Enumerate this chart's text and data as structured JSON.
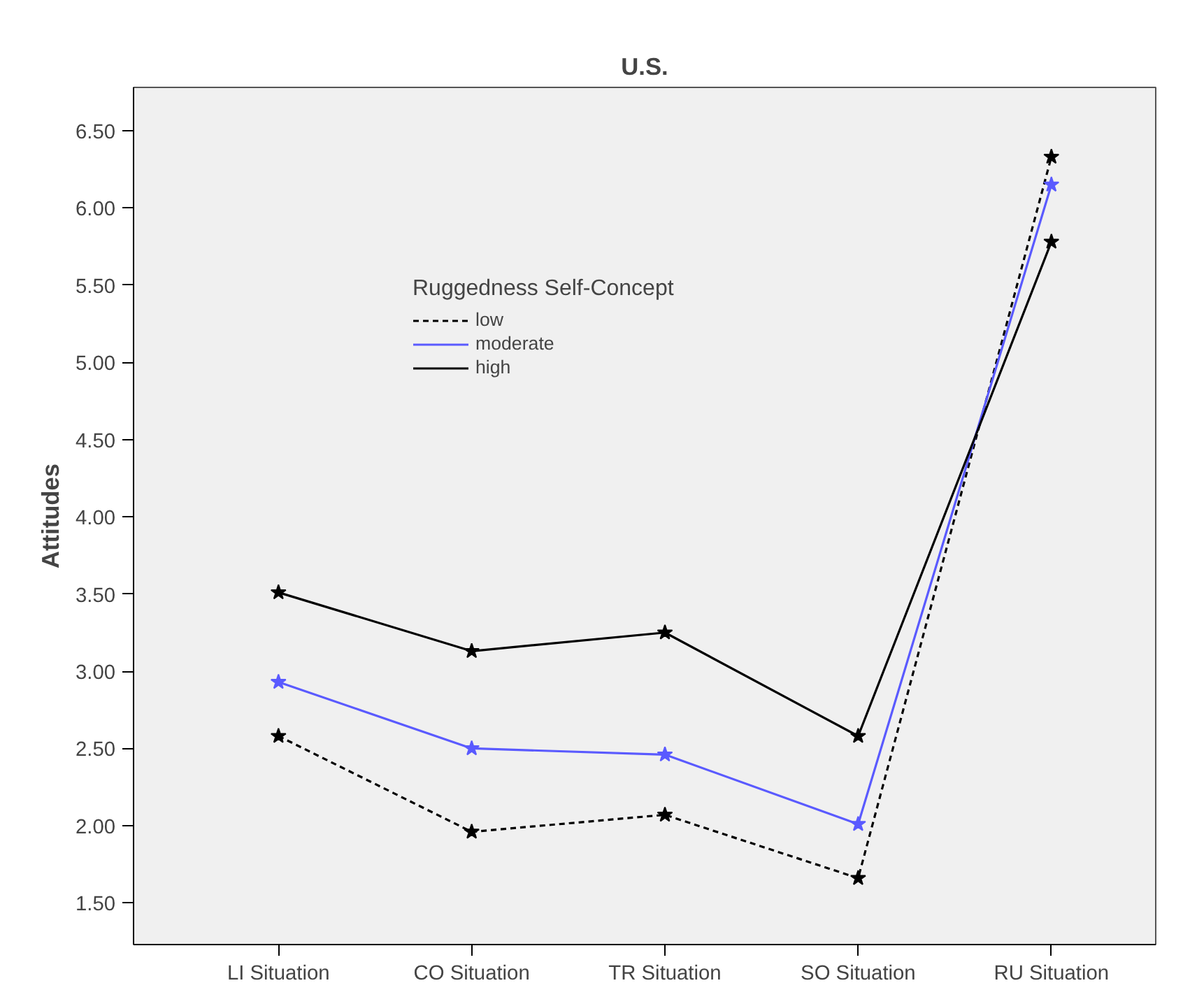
{
  "chart_data": {
    "type": "line",
    "title": "U.S.",
    "ylabel": "Attitudes",
    "legend_title": "Ruggedness Self-Concept",
    "categories": [
      "LI Situation",
      "CO Situation",
      "TR Situation",
      "SO Situation",
      "RU Situation"
    ],
    "series": [
      {
        "name": "low",
        "color": "#000000",
        "line_style": "dashed",
        "values": [
          2.58,
          1.96,
          2.07,
          1.66,
          6.33
        ]
      },
      {
        "name": "moderate",
        "color": "#5a5aff",
        "line_style": "solid",
        "values": [
          2.93,
          2.5,
          2.46,
          2.01,
          6.15
        ]
      },
      {
        "name": "high",
        "color": "#000000",
        "line_style": "solid",
        "values": [
          3.51,
          3.13,
          3.25,
          2.58,
          5.78
        ]
      }
    ],
    "ylim": [
      1.23,
      6.78
    ],
    "yticks": [
      {
        "value": 1.5,
        "label": "1.50"
      },
      {
        "value": 2,
        "label": "2.00"
      },
      {
        "value": 2.5,
        "label": "2.50"
      },
      {
        "value": 3,
        "label": "3.00"
      },
      {
        "value": 3.5,
        "label": "3.50"
      },
      {
        "value": 4,
        "label": "4.00"
      },
      {
        "value": 4.5,
        "label": "4.50"
      },
      {
        "value": 5,
        "label": "5.00"
      },
      {
        "value": 5.5,
        "label": "5.50"
      },
      {
        "value": 6,
        "label": "6.00"
      },
      {
        "value": 6.5,
        "label": "6.50"
      }
    ],
    "marker": "star",
    "grid": false,
    "legend": "top"
  }
}
